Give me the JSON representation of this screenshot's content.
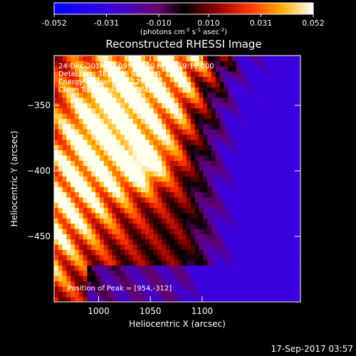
{
  "chart_data": {
    "type": "heatmap",
    "title": "Reconstructed RHESSI Image",
    "xlabel": "Heliocentric X (arcsec)",
    "ylabel": "Heliocentric Y (arcsec)",
    "xlim": [
      957,
      1195
    ],
    "ylim": [
      -500,
      -312
    ],
    "xticks": [
      "1000",
      "1050",
      "1100"
    ],
    "yticks": [
      "-350",
      "-400",
      "-450"
    ],
    "colorbar": {
      "min": -0.052,
      "max": 0.052,
      "ticks": [
        "-0.052",
        "-0.031",
        "-0.010",
        "0.010",
        "0.031",
        "0.052"
      ],
      "units_html": "(photons cm<tspan baseline-shift=\"super\" font-size=\"7\">-2</tspan> s<tspan baseline-shift=\"super\" font-size=\"7\">-1</tspan> asec<tspan baseline-shift=\"super\" font-size=\"7\">-2</tspan>)"
    },
    "info_lines": [
      "24-Dec-2014 09:09:16.000 to 09:19:16.000",
      "Detectors: 3F 6F 7F 9F, Att 0",
      "Energy Range: 6.0 - 12.0 keV",
      "Clean    Total Counts: 1.26E+05"
    ],
    "peak_label": "Position of Peak = [954,-312]",
    "peak_position": [
      954,
      -312
    ],
    "timestamp": "17-Sep-2017 03:57"
  }
}
